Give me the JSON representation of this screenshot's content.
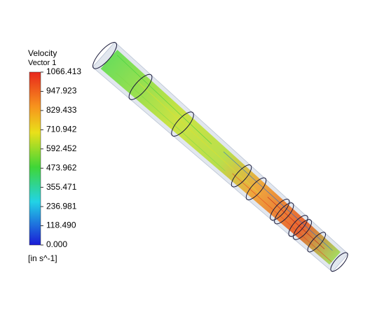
{
  "legend": {
    "title": "Velocity",
    "subtitle": "Vector 1",
    "ticks": [
      "1066.413",
      "947.923",
      "829.433",
      "710.942",
      "592.452",
      "473.962",
      "355.471",
      "236.981",
      "118.490",
      "0.000"
    ],
    "unit": "[in s^-1]"
  }
}
